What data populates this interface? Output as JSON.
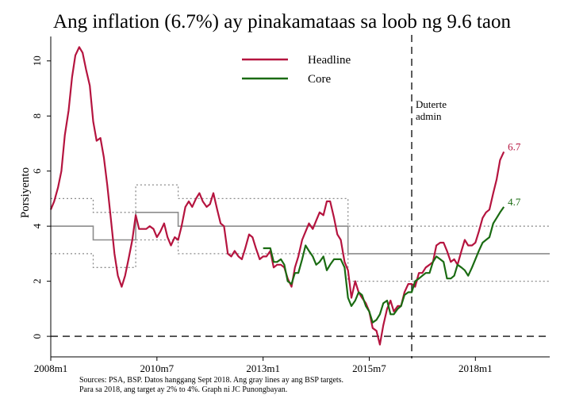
{
  "chart_data": {
    "type": "line",
    "title": "Ang inflation (6.7%) ay pinakamataas sa loob ng 9.6 taon",
    "ylabel": "Porsiyento",
    "xlabel": "",
    "xlim": [
      2008.0,
      2019.75
    ],
    "ylim": [
      -0.4,
      10.8
    ],
    "y_ticks": [
      0,
      2,
      4,
      6,
      8,
      10
    ],
    "x_ticks": [
      {
        "x": 2008.0,
        "label": "2008m1"
      },
      {
        "x": 2010.5,
        "label": "2010m7"
      },
      {
        "x": 2013.0,
        "label": "2013m1"
      },
      {
        "x": 2015.5,
        "label": "2015m7"
      },
      {
        "x": 2018.0,
        "label": "2018m1"
      }
    ],
    "legend": {
      "position": "top-center",
      "entries": [
        "Headline",
        "Core"
      ]
    },
    "series": [
      {
        "name": "Headline",
        "color": "#b5143f",
        "points": [
          [
            2008.0,
            4.6
          ],
          [
            2008.08,
            4.9
          ],
          [
            2008.17,
            5.4
          ],
          [
            2008.25,
            6.0
          ],
          [
            2008.33,
            7.3
          ],
          [
            2008.42,
            8.2
          ],
          [
            2008.5,
            9.4
          ],
          [
            2008.58,
            10.2
          ],
          [
            2008.67,
            10.5
          ],
          [
            2008.75,
            10.3
          ],
          [
            2008.83,
            9.7
          ],
          [
            2008.92,
            9.1
          ],
          [
            2009.0,
            7.8
          ],
          [
            2009.08,
            7.1
          ],
          [
            2009.17,
            7.2
          ],
          [
            2009.25,
            6.5
          ],
          [
            2009.33,
            5.5
          ],
          [
            2009.42,
            4.2
          ],
          [
            2009.5,
            3.0
          ],
          [
            2009.58,
            2.2
          ],
          [
            2009.67,
            1.8
          ],
          [
            2009.75,
            2.2
          ],
          [
            2009.83,
            2.8
          ],
          [
            2009.92,
            3.5
          ],
          [
            2010.0,
            4.4
          ],
          [
            2010.08,
            3.9
          ],
          [
            2010.17,
            3.9
          ],
          [
            2010.25,
            3.9
          ],
          [
            2010.33,
            4.0
          ],
          [
            2010.42,
            3.9
          ],
          [
            2010.5,
            3.6
          ],
          [
            2010.58,
            3.8
          ],
          [
            2010.67,
            4.1
          ],
          [
            2010.75,
            3.6
          ],
          [
            2010.83,
            3.3
          ],
          [
            2010.92,
            3.6
          ],
          [
            2011.0,
            3.5
          ],
          [
            2011.08,
            4.0
          ],
          [
            2011.17,
            4.7
          ],
          [
            2011.25,
            4.9
          ],
          [
            2011.33,
            4.7
          ],
          [
            2011.42,
            5.0
          ],
          [
            2011.5,
            5.2
          ],
          [
            2011.58,
            4.9
          ],
          [
            2011.67,
            4.7
          ],
          [
            2011.75,
            4.8
          ],
          [
            2011.83,
            5.2
          ],
          [
            2011.92,
            4.6
          ],
          [
            2012.0,
            4.1
          ],
          [
            2012.08,
            4.0
          ],
          [
            2012.17,
            3.0
          ],
          [
            2012.25,
            2.9
          ],
          [
            2012.33,
            3.1
          ],
          [
            2012.42,
            2.9
          ],
          [
            2012.5,
            2.8
          ],
          [
            2012.58,
            3.2
          ],
          [
            2012.67,
            3.7
          ],
          [
            2012.75,
            3.6
          ],
          [
            2012.83,
            3.2
          ],
          [
            2012.92,
            2.8
          ],
          [
            2013.0,
            2.9
          ],
          [
            2013.08,
            2.9
          ],
          [
            2013.17,
            3.1
          ],
          [
            2013.25,
            2.5
          ],
          [
            2013.33,
            2.6
          ],
          [
            2013.42,
            2.6
          ],
          [
            2013.5,
            2.5
          ],
          [
            2013.58,
            2.1
          ],
          [
            2013.67,
            1.8
          ],
          [
            2013.75,
            2.5
          ],
          [
            2013.83,
            2.9
          ],
          [
            2013.92,
            3.5
          ],
          [
            2014.0,
            3.8
          ],
          [
            2014.08,
            4.1
          ],
          [
            2014.17,
            3.9
          ],
          [
            2014.25,
            4.2
          ],
          [
            2014.33,
            4.5
          ],
          [
            2014.42,
            4.4
          ],
          [
            2014.5,
            4.9
          ],
          [
            2014.58,
            4.9
          ],
          [
            2014.67,
            4.3
          ],
          [
            2014.75,
            3.7
          ],
          [
            2014.83,
            3.5
          ],
          [
            2014.92,
            2.7
          ],
          [
            2015.0,
            2.4
          ],
          [
            2015.08,
            1.4
          ],
          [
            2015.17,
            2.0
          ],
          [
            2015.25,
            1.6
          ],
          [
            2015.33,
            1.4
          ],
          [
            2015.42,
            1.2
          ],
          [
            2015.5,
            0.9
          ],
          [
            2015.58,
            0.3
          ],
          [
            2015.67,
            0.2
          ],
          [
            2015.75,
            -0.3
          ],
          [
            2015.83,
            0.4
          ],
          [
            2015.92,
            1.0
          ],
          [
            2016.0,
            1.3
          ],
          [
            2016.08,
            0.9
          ],
          [
            2016.17,
            1.1
          ],
          [
            2016.25,
            1.1
          ],
          [
            2016.33,
            1.6
          ],
          [
            2016.42,
            1.9
          ],
          [
            2016.5,
            1.9
          ],
          [
            2016.58,
            1.8
          ],
          [
            2016.67,
            2.3
          ],
          [
            2016.75,
            2.3
          ],
          [
            2016.83,
            2.5
          ],
          [
            2016.92,
            2.6
          ],
          [
            2017.0,
            2.7
          ],
          [
            2017.08,
            3.3
          ],
          [
            2017.17,
            3.4
          ],
          [
            2017.25,
            3.4
          ],
          [
            2017.33,
            3.1
          ],
          [
            2017.42,
            2.7
          ],
          [
            2017.5,
            2.8
          ],
          [
            2017.58,
            2.6
          ],
          [
            2017.67,
            3.1
          ],
          [
            2017.75,
            3.5
          ],
          [
            2017.83,
            3.3
          ],
          [
            2017.92,
            3.3
          ],
          [
            2018.0,
            3.4
          ],
          [
            2018.08,
            3.8
          ],
          [
            2018.17,
            4.3
          ],
          [
            2018.25,
            4.5
          ],
          [
            2018.33,
            4.6
          ],
          [
            2018.42,
            5.2
          ],
          [
            2018.5,
            5.7
          ],
          [
            2018.58,
            6.4
          ],
          [
            2018.67,
            6.7
          ]
        ],
        "end_label": "6.7"
      },
      {
        "name": "Core",
        "color": "#1a6b12",
        "points": [
          [
            2013.0,
            3.2
          ],
          [
            2013.08,
            3.2
          ],
          [
            2013.17,
            3.2
          ],
          [
            2013.25,
            2.7
          ],
          [
            2013.33,
            2.7
          ],
          [
            2013.42,
            2.8
          ],
          [
            2013.5,
            2.6
          ],
          [
            2013.58,
            2.0
          ],
          [
            2013.67,
            1.9
          ],
          [
            2013.75,
            2.3
          ],
          [
            2013.83,
            2.3
          ],
          [
            2013.92,
            2.8
          ],
          [
            2014.0,
            3.3
          ],
          [
            2014.08,
            3.1
          ],
          [
            2014.17,
            2.9
          ],
          [
            2014.25,
            2.6
          ],
          [
            2014.33,
            2.7
          ],
          [
            2014.42,
            2.9
          ],
          [
            2014.5,
            2.4
          ],
          [
            2014.58,
            2.6
          ],
          [
            2014.67,
            2.8
          ],
          [
            2014.75,
            2.8
          ],
          [
            2014.83,
            2.8
          ],
          [
            2014.92,
            2.5
          ],
          [
            2015.0,
            1.4
          ],
          [
            2015.08,
            1.1
          ],
          [
            2015.17,
            1.3
          ],
          [
            2015.25,
            1.6
          ],
          [
            2015.33,
            1.5
          ],
          [
            2015.42,
            1.1
          ],
          [
            2015.5,
            0.9
          ],
          [
            2015.58,
            0.5
          ],
          [
            2015.67,
            0.6
          ],
          [
            2015.75,
            0.8
          ],
          [
            2015.83,
            1.2
          ],
          [
            2015.92,
            1.3
          ],
          [
            2016.0,
            0.8
          ],
          [
            2016.08,
            0.8
          ],
          [
            2016.17,
            1.0
          ],
          [
            2016.25,
            1.1
          ],
          [
            2016.33,
            1.5
          ],
          [
            2016.42,
            1.6
          ],
          [
            2016.5,
            1.6
          ],
          [
            2016.58,
            2.0
          ],
          [
            2016.67,
            2.1
          ],
          [
            2016.75,
            2.2
          ],
          [
            2016.83,
            2.3
          ],
          [
            2016.92,
            2.3
          ],
          [
            2017.0,
            2.7
          ],
          [
            2017.08,
            2.9
          ],
          [
            2017.17,
            2.8
          ],
          [
            2017.25,
            2.7
          ],
          [
            2017.33,
            2.1
          ],
          [
            2017.42,
            2.1
          ],
          [
            2017.5,
            2.2
          ],
          [
            2017.58,
            2.6
          ],
          [
            2017.67,
            2.5
          ],
          [
            2017.75,
            2.4
          ],
          [
            2017.83,
            2.2
          ],
          [
            2017.92,
            2.5
          ],
          [
            2018.0,
            2.8
          ],
          [
            2018.08,
            3.1
          ],
          [
            2018.17,
            3.4
          ],
          [
            2018.25,
            3.5
          ],
          [
            2018.33,
            3.6
          ],
          [
            2018.42,
            4.1
          ],
          [
            2018.5,
            4.3
          ],
          [
            2018.58,
            4.5
          ],
          [
            2018.67,
            4.7
          ]
        ],
        "end_label": "4.7"
      }
    ],
    "bsp_target_mid": [
      [
        2008.0,
        4.0
      ],
      [
        2009.0,
        4.0
      ],
      [
        2009.0,
        3.5
      ],
      [
        2010.0,
        3.5
      ],
      [
        2010.0,
        4.5
      ],
      [
        2011.0,
        4.5
      ],
      [
        2011.0,
        4.0
      ],
      [
        2015.0,
        4.0
      ],
      [
        2015.0,
        3.0
      ],
      [
        2019.75,
        3.0
      ]
    ],
    "bsp_target_high": [
      [
        2008.0,
        5.0
      ],
      [
        2009.0,
        5.0
      ],
      [
        2009.0,
        4.5
      ],
      [
        2010.0,
        4.5
      ],
      [
        2010.0,
        5.5
      ],
      [
        2011.0,
        5.5
      ],
      [
        2011.0,
        5.0
      ],
      [
        2015.0,
        5.0
      ],
      [
        2015.0,
        4.0
      ],
      [
        2019.75,
        4.0
      ]
    ],
    "bsp_target_low": [
      [
        2008.0,
        3.0
      ],
      [
        2009.0,
        3.0
      ],
      [
        2009.0,
        2.5
      ],
      [
        2010.0,
        2.5
      ],
      [
        2010.0,
        3.5
      ],
      [
        2011.0,
        3.5
      ],
      [
        2011.0,
        3.0
      ],
      [
        2015.0,
        3.0
      ],
      [
        2015.0,
        2.0
      ],
      [
        2019.75,
        2.0
      ]
    ],
    "zero_line": 0,
    "vline": {
      "x": 2016.5,
      "label_line1": "Duterte",
      "label_line2": "admin"
    },
    "source_note": [
      "Sources: PSA, BSP. Datos hanggang Sept 2018. Ang gray lines ay ang BSP targets.",
      "Para sa 2018, ang target ay 2% to 4%. Graph ni JC Punongbayan."
    ]
  }
}
